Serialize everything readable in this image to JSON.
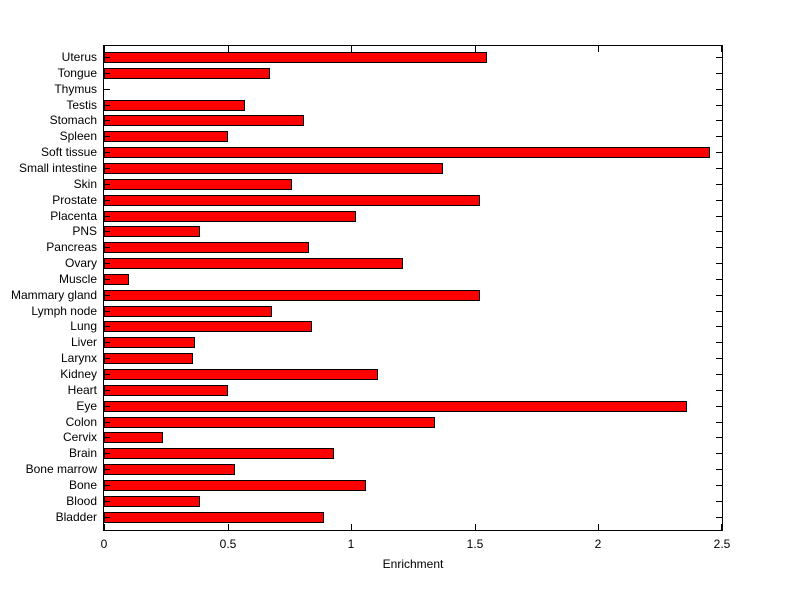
{
  "figure": {
    "background": "#ffffff",
    "text_color": "#000000"
  },
  "chart_data": {
    "type": "bar",
    "orientation": "horizontal",
    "title": "",
    "xlabel": "Enrichment",
    "ylabel": "",
    "xlim": [
      0,
      2.5
    ],
    "xticks": [
      0,
      0.5,
      1,
      1.5,
      2,
      2.5
    ],
    "xtick_labels": [
      "0",
      "0.5",
      "1",
      "1.5",
      "2",
      "2.5"
    ],
    "grid": false,
    "legend": null,
    "bar_color": "#ff0000",
    "bar_edge_color": "#000000",
    "categories": [
      "Uterus",
      "Tongue",
      "Thymus",
      "Testis",
      "Stomach",
      "Spleen",
      "Soft tissue",
      "Small intestine",
      "Skin",
      "Prostate",
      "Placenta",
      "PNS",
      "Pancreas",
      "Ovary",
      "Muscle",
      "Mammary gland",
      "Lymph node",
      "Lung",
      "Liver",
      "Larynx",
      "Kidney",
      "Heart",
      "Eye",
      "Colon",
      "Cervix",
      "Brain",
      "Bone marrow",
      "Bone",
      "Blood",
      "Bladder"
    ],
    "values": [
      1.55,
      0.67,
      0,
      0.57,
      0.81,
      0.5,
      2.45,
      1.37,
      0.76,
      1.52,
      1.02,
      0.39,
      0.83,
      1.21,
      0.1,
      1.52,
      0.68,
      0.84,
      0.37,
      0.36,
      1.11,
      0.5,
      2.36,
      1.34,
      0.24,
      0.93,
      0.53,
      1.06,
      0.39,
      0.89
    ]
  }
}
